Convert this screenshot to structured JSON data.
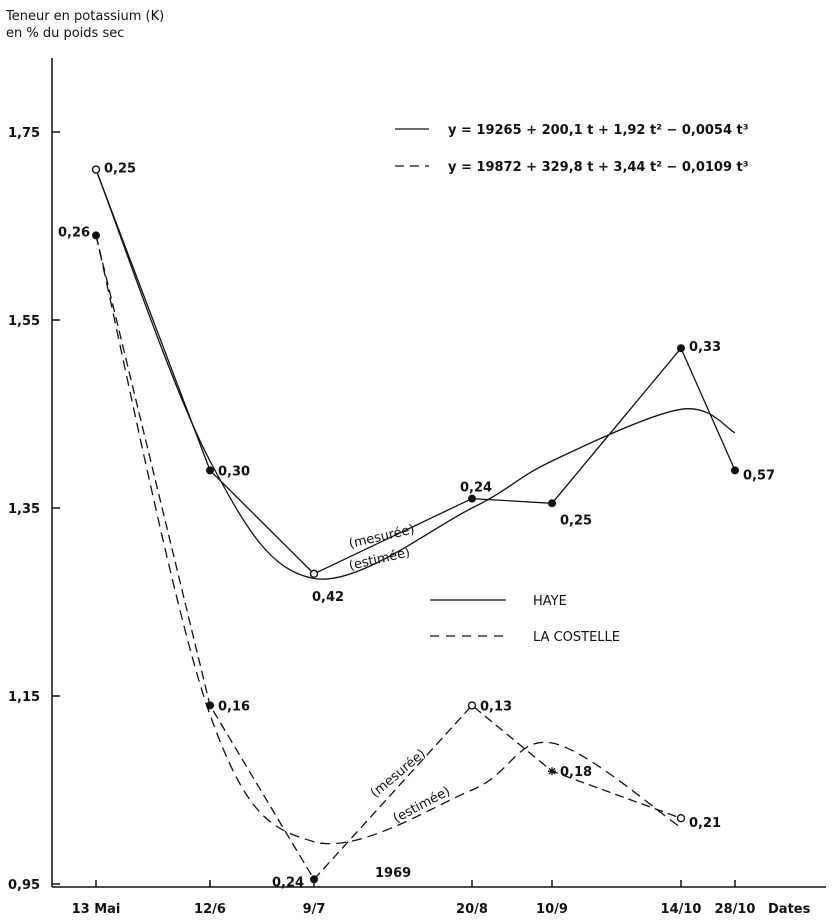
{
  "chart_data": {
    "type": "line",
    "ylabel": [
      "Teneur en potassium (K)",
      "en % du poids sec"
    ],
    "xlabel": "Dates",
    "year_note": "1969",
    "ylim": [
      0.95,
      1.75
    ],
    "yticks": [
      {
        "value": 1.75,
        "label": "1,75"
      },
      {
        "value": 1.55,
        "label": "1,55"
      },
      {
        "value": 1.35,
        "label": "1,35"
      },
      {
        "value": 1.15,
        "label": "1,15"
      },
      {
        "value": 0.95,
        "label": "0,95"
      }
    ],
    "xticks": [
      {
        "day": 0,
        "label": "13 Mai"
      },
      {
        "day": 30,
        "label": "12/6"
      },
      {
        "day": 57,
        "label": "9/7"
      },
      {
        "day": 99,
        "label": "20/8"
      },
      {
        "day": 120,
        "label": "10/9"
      },
      {
        "day": 154,
        "label": "14/10"
      },
      {
        "day": 168,
        "label": "28/10"
      }
    ],
    "equations": {
      "haye": "y = 19265 + 200,1 t + 1,92 t² − 0,0054 t³",
      "la_costelle": "y = 19872 + 329,8 t + 3,44 t² − 0,0109 t³"
    },
    "legend": [
      {
        "name": "HAYE",
        "dash": "solid"
      },
      {
        "name": "LA COSTELLE",
        "dash": "dashed"
      }
    ],
    "curve_labels": {
      "measured": "(mesurée)",
      "estimated": "(estimée)"
    },
    "series": [
      {
        "name": "HAYE",
        "dash": "solid",
        "kind": "measured",
        "points": [
          {
            "x": "13 Mai",
            "y": 1.71,
            "label": "0,25",
            "marker": "open"
          },
          {
            "x": "12/6",
            "y": 1.39,
            "label": "0,30",
            "marker": "filled"
          },
          {
            "x": "9/7",
            "y": 1.28,
            "label": "0,42",
            "marker": "open"
          },
          {
            "x": "20/8",
            "y": 1.36,
            "label": "0,24",
            "marker": "filled"
          },
          {
            "x": "10/9",
            "y": 1.355,
            "label": "0,25",
            "marker": "filled"
          },
          {
            "x": "14/10",
            "y": 1.52,
            "label": "0,33",
            "marker": "filled"
          },
          {
            "x": "28/10",
            "y": 1.39,
            "label": "0,57",
            "marker": "filled"
          }
        ]
      },
      {
        "name": "HAYE",
        "dash": "solid",
        "kind": "estimated",
        "points": [
          {
            "x": "13 Mai",
            "y": 1.71
          },
          {
            "x": "12/6",
            "y": 1.4
          },
          {
            "x": "9/7",
            "y": 1.275
          },
          {
            "x": "20/8",
            "y": 1.35
          },
          {
            "x": "10/9",
            "y": 1.4
          },
          {
            "x": "14/10",
            "y": 1.455
          },
          {
            "x": "28/10",
            "y": 1.43
          }
        ]
      },
      {
        "name": "LA COSTELLE",
        "dash": "dashed",
        "kind": "measured",
        "points": [
          {
            "x": "13 Mai",
            "y": 1.64,
            "label": "0,26",
            "marker": "filled"
          },
          {
            "x": "12/6",
            "y": 1.14,
            "label": "0,16",
            "marker": "filled"
          },
          {
            "x": "9/7",
            "y": 0.955,
            "label": "0,24",
            "marker": "filled"
          },
          {
            "x": "20/8",
            "y": 1.14,
            "label": "0,13",
            "marker": "open"
          },
          {
            "x": "10/9",
            "y": 1.07,
            "label": "0,18",
            "marker": "star"
          },
          {
            "x": "14/10",
            "y": 1.02,
            "label": "0,21",
            "marker": "open"
          }
        ]
      },
      {
        "name": "LA COSTELLE",
        "dash": "dashed",
        "kind": "estimated",
        "points": [
          {
            "x": "13 Mai",
            "y": 1.64
          },
          {
            "x": "12/6",
            "y": 1.13
          },
          {
            "x": "9/7",
            "y": 0.995
          },
          {
            "x": "20/8",
            "y": 1.05
          },
          {
            "x": "10/9",
            "y": 1.1
          },
          {
            "x": "14/10",
            "y": 1.01
          }
        ]
      }
    ]
  }
}
